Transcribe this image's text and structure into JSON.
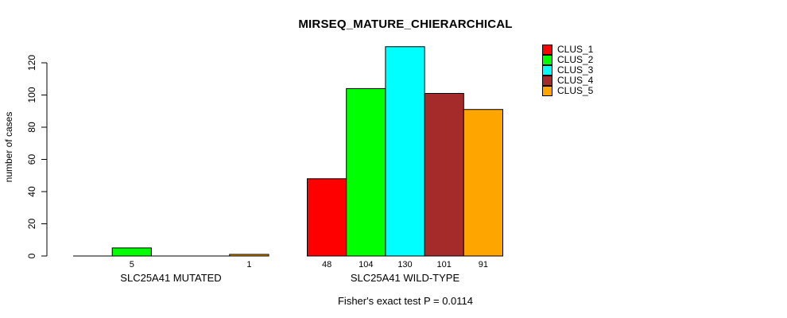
{
  "chart_data": {
    "type": "bar",
    "title": "MIRSEQ_MATURE_CHIERARCHICAL",
    "ylabel": "number of cases",
    "xlabel": "",
    "ylim": [
      0,
      130
    ],
    "yticks": [
      0,
      20,
      40,
      60,
      80,
      100,
      120
    ],
    "grid": false,
    "legend_position": "top-right",
    "series": [
      {
        "name": "CLUS_1",
        "color": "#ff0000"
      },
      {
        "name": "CLUS_2",
        "color": "#00ff00"
      },
      {
        "name": "CLUS_3",
        "color": "#00ffff"
      },
      {
        "name": "CLUS_4",
        "color": "#a52a2a"
      },
      {
        "name": "CLUS_5",
        "color": "#ffa500"
      }
    ],
    "groups": [
      {
        "label": "SLC25A41 MUTATED",
        "values": [
          0,
          5,
          0,
          0,
          1
        ],
        "bar_labels": [
          "",
          "5",
          "",
          "",
          "1"
        ]
      },
      {
        "label": "SLC25A41 WILD-TYPE",
        "values": [
          48,
          104,
          130,
          101,
          91
        ],
        "bar_labels": [
          "48",
          "104",
          "130",
          "101",
          "91"
        ]
      }
    ],
    "footnote": "Fisher's exact test P = 0.0114"
  }
}
